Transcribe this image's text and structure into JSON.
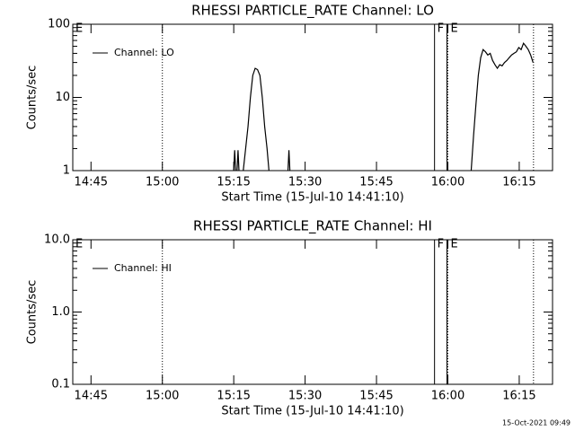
{
  "chart_data": [
    {
      "type": "line",
      "title": "RHESSI PARTICLE_RATE Channel: LO",
      "y_label": "Counts/sec",
      "x_label": "Start Time (15-Jul-10 14:41:10)",
      "log_y": true,
      "ylim": [
        1,
        100
      ],
      "yticks": [
        1,
        10,
        100
      ],
      "xlim": [
        41.17,
        142
      ],
      "xticks": [
        {
          "value": 45,
          "label": "14:45"
        },
        {
          "value": 60,
          "label": "15:00"
        },
        {
          "value": 75,
          "label": "15:15"
        },
        {
          "value": 90,
          "label": "15:30"
        },
        {
          "value": 105,
          "label": "15:45"
        },
        {
          "value": 120,
          "label": "16:00"
        },
        {
          "value": 135,
          "label": "16:15"
        }
      ],
      "flags": [
        {
          "label": "E",
          "x": 41.17
        },
        {
          "label": "F",
          "x": 117.2
        },
        {
          "label": "E",
          "x": 120
        }
      ],
      "solid_lines": [
        117.2,
        119.8
      ],
      "dotted_lines": [
        60,
        120,
        138
      ],
      "series": [
        {
          "name": "Channel: LO",
          "color": "#000000",
          "x": [
            75.0,
            75.2,
            75.4,
            null,
            75.7,
            75.9,
            76.1,
            null,
            77.0,
            77.5,
            78.0,
            78.5,
            79.0,
            79.5,
            80.0,
            80.5,
            81.0,
            81.5,
            82.0,
            82.4,
            null,
            86.4,
            86.6,
            86.8,
            null,
            124.9,
            125.4,
            125.9,
            126.4,
            126.9,
            127.4,
            127.9,
            128.4,
            128.9,
            129.4,
            129.9,
            130.4,
            130.9,
            131.4,
            131.9,
            132.4,
            132.9,
            133.4,
            133.9,
            134.4,
            134.9,
            135.4,
            135.9,
            136.4,
            136.9,
            137.4,
            137.9
          ],
          "values": [
            1,
            1.9,
            1,
            null,
            1,
            1.9,
            1,
            null,
            1,
            2,
            4,
            10,
            20,
            25,
            24,
            20,
            10,
            4,
            2,
            1,
            null,
            1,
            1.9,
            1,
            null,
            1,
            3,
            8,
            20,
            35,
            45,
            42,
            38,
            40,
            32,
            28,
            25,
            28,
            27,
            30,
            32,
            35,
            38,
            40,
            42,
            48,
            45,
            55,
            50,
            45,
            38,
            30
          ]
        }
      ]
    },
    {
      "type": "line",
      "title": "RHESSI PARTICLE_RATE Channel: HI",
      "y_label": "Counts/sec",
      "x_label": "Start Time (15-Jul-10 14:41:10)",
      "log_y": true,
      "ylim": [
        0.1,
        10
      ],
      "yticks": [
        0.1,
        {
          "value": 1,
          "label": "1.0"
        },
        {
          "value": 10,
          "label": "10.0"
        }
      ],
      "xlim": [
        41.17,
        142
      ],
      "xticks": [
        {
          "value": 45,
          "label": "14:45"
        },
        {
          "value": 60,
          "label": "15:00"
        },
        {
          "value": 75,
          "label": "15:15"
        },
        {
          "value": 90,
          "label": "15:30"
        },
        {
          "value": 105,
          "label": "15:45"
        },
        {
          "value": 120,
          "label": "16:00"
        },
        {
          "value": 135,
          "label": "16:15"
        }
      ],
      "flags": [
        {
          "label": "E",
          "x": 41.17
        },
        {
          "label": "F",
          "x": 117.2
        },
        {
          "label": "E",
          "x": 120
        }
      ],
      "solid_lines": [
        117.2,
        119.8
      ],
      "dotted_lines": [
        60,
        120,
        138
      ],
      "series": [
        {
          "name": "Channel: HI",
          "color": "#000000",
          "x": [],
          "values": []
        }
      ]
    }
  ],
  "footer": "15-Oct-2021 09:49"
}
